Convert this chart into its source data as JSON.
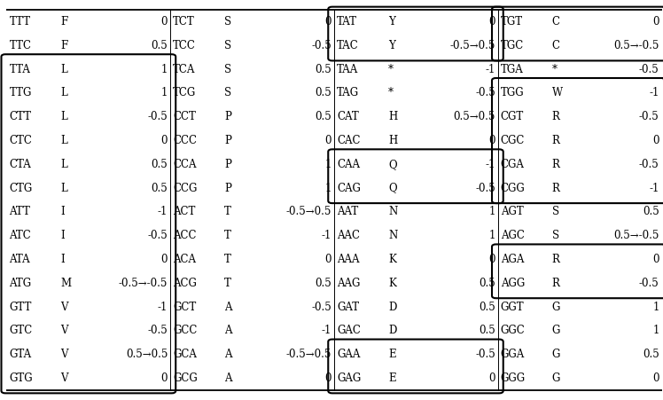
{
  "rows": [
    [
      "TTT",
      "F",
      "0",
      "TCT",
      "S",
      "0",
      "TAT",
      "Y",
      "0",
      "TGT",
      "C",
      "0"
    ],
    [
      "TTC",
      "F",
      "0.5",
      "TCC",
      "S",
      "-0.5",
      "TAC",
      "Y",
      "-0.5→0.5",
      "TGC",
      "C",
      "0.5→-0.5"
    ],
    [
      "TTA",
      "L",
      "1",
      "TCA",
      "S",
      "0.5",
      "TAA",
      "*",
      "-1",
      "TGA",
      "*",
      "-0.5"
    ],
    [
      "TTG",
      "L",
      "1",
      "TCG",
      "S",
      "0.5",
      "TAG",
      "*",
      "-0.5",
      "TGG",
      "W",
      "-1"
    ],
    [
      "CTT",
      "L",
      "-0.5",
      "CCT",
      "P",
      "0.5",
      "CAT",
      "H",
      "0.5→0.5",
      "CGT",
      "R",
      "-0.5"
    ],
    [
      "CTC",
      "L",
      "0",
      "CCC",
      "P",
      "0",
      "CAC",
      "H",
      "0",
      "CGC",
      "R",
      "0"
    ],
    [
      "CTA",
      "L",
      "0.5",
      "CCA",
      "P",
      "1",
      "CAA",
      "Q",
      "-1",
      "CGA",
      "R",
      "-0.5"
    ],
    [
      "CTG",
      "L",
      "0.5",
      "CCG",
      "P",
      "1",
      "CAG",
      "Q",
      "-0.5",
      "CGG",
      "R",
      "-1"
    ],
    [
      "ATT",
      "I",
      "-1",
      "ACT",
      "T",
      "-0.5→0.5",
      "AAT",
      "N",
      "1",
      "AGT",
      "S",
      "0.5"
    ],
    [
      "ATC",
      "I",
      "-0.5",
      "ACC",
      "T",
      "-1",
      "AAC",
      "N",
      "1",
      "AGC",
      "S",
      "0.5→-0.5"
    ],
    [
      "ATA",
      "I",
      "0",
      "ACA",
      "T",
      "0",
      "AAA",
      "K",
      "0",
      "AGA",
      "R",
      "0"
    ],
    [
      "ATG",
      "M",
      "-0.5→-0.5",
      "ACG",
      "T",
      "0.5",
      "AAG",
      "K",
      "0.5",
      "AGG",
      "R",
      "-0.5"
    ],
    [
      "GTT",
      "V",
      "-1",
      "GCT",
      "A",
      "-0.5",
      "GAT",
      "D",
      "0.5",
      "GGT",
      "G",
      "1"
    ],
    [
      "GTC",
      "V",
      "-0.5",
      "GCC",
      "A",
      "-1",
      "GAC",
      "D",
      "0.5",
      "GGC",
      "G",
      "1"
    ],
    [
      "GTA",
      "V",
      "0.5→0.5",
      "GCA",
      "A",
      "-0.5→0.5",
      "GAA",
      "E",
      "-0.5",
      "GGA",
      "G",
      "0.5"
    ],
    [
      "GTG",
      "V",
      "0",
      "GCG",
      "A",
      "0",
      "GAG",
      "E",
      "0",
      "GGG",
      "G",
      "0"
    ]
  ],
  "figsize": [
    7.48,
    4.51
  ],
  "dpi": 100,
  "fontsize": 8.5,
  "font_family": "DejaVu Serif"
}
